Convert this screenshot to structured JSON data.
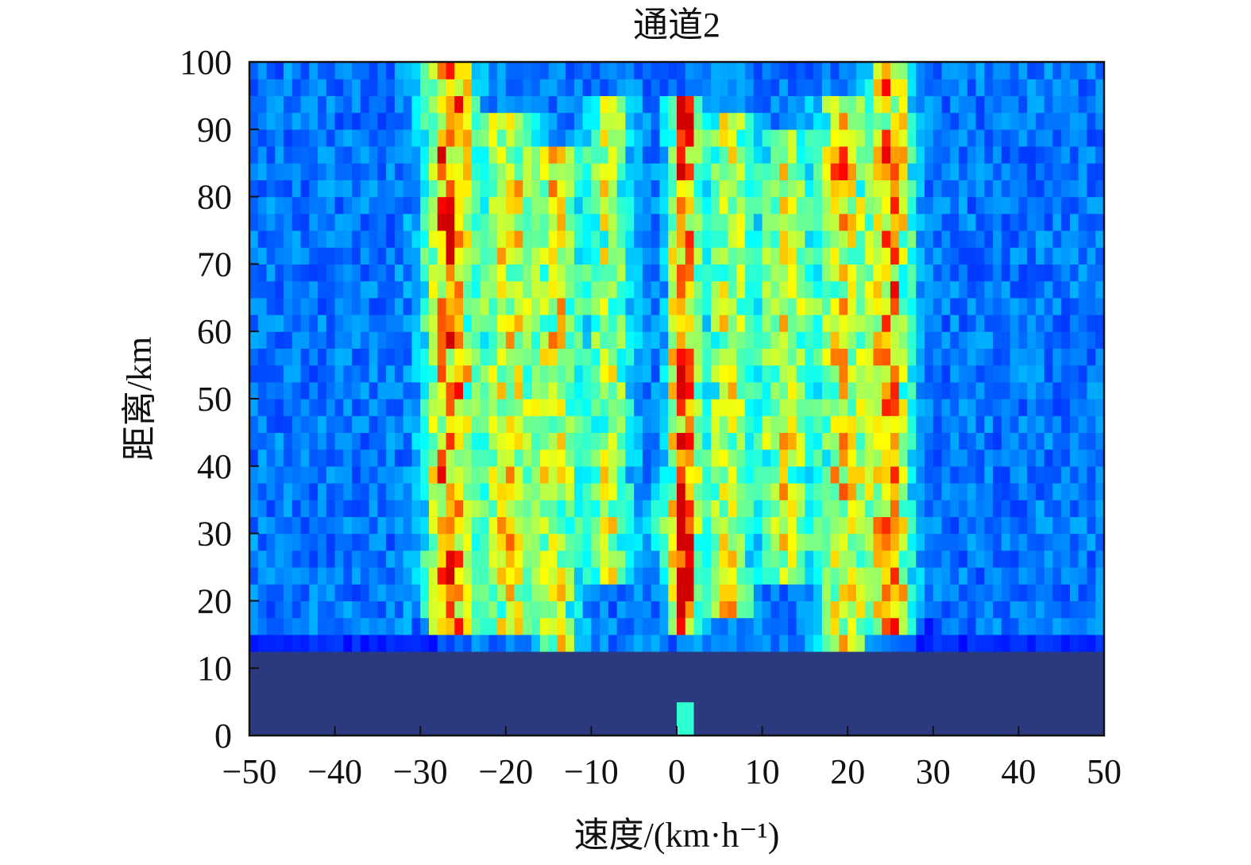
{
  "chart_data": {
    "type": "heatmap",
    "title": "通道2",
    "xlabel": "速度/(km·h⁻¹)",
    "ylabel": "距离/km",
    "xlim": [
      -50,
      50
    ],
    "ylim": [
      0,
      100
    ],
    "xticks": [
      -50,
      -40,
      -30,
      -20,
      -10,
      0,
      10,
      20,
      30,
      40,
      50
    ],
    "yticks": [
      0,
      10,
      20,
      30,
      40,
      50,
      60,
      70,
      80,
      90,
      100
    ],
    "xtick_labels": [
      "−50",
      "−40",
      "−30",
      "−20",
      "−10",
      "0",
      "10",
      "20",
      "30",
      "40",
      "50"
    ],
    "ytick_labels": [
      "0",
      "10",
      "20",
      "30",
      "40",
      "50",
      "60",
      "70",
      "80",
      "90",
      "100"
    ],
    "grid": false,
    "colormap": "jet",
    "colors": {
      "floor": "#2b3a7e",
      "low": "#2f4ea6",
      "mid": "#35b8d8",
      "high": "#e6e62a",
      "peak": "#e8281c"
    },
    "cells": {
      "x_bin_width": 1,
      "y_bin_height": 2.5,
      "floor_top_range": 14,
      "noise_seed": 1234
    },
    "bands": [
      {
        "center": -26.5,
        "width": 2.8,
        "from": 14,
        "to": 100,
        "intensity": 0.6
      },
      {
        "center": -19.5,
        "width": 3.0,
        "from": 16,
        "to": 92,
        "intensity": 0.45
      },
      {
        "center": -14.0,
        "width": 2.4,
        "from": 12,
        "to": 88,
        "intensity": 0.42
      },
      {
        "center": -8.0,
        "width": 2.6,
        "from": 22,
        "to": 96,
        "intensity": 0.38
      },
      {
        "center": 0.8,
        "width": 1.6,
        "from": 16,
        "to": 96,
        "intensity": 0.7
      },
      {
        "center": 6.0,
        "width": 2.6,
        "from": 18,
        "to": 92,
        "intensity": 0.4
      },
      {
        "center": 12.5,
        "width": 2.8,
        "from": 22,
        "to": 90,
        "intensity": 0.42
      },
      {
        "center": 19.5,
        "width": 2.8,
        "from": 12,
        "to": 94,
        "intensity": 0.47
      },
      {
        "center": 25.0,
        "width": 2.4,
        "from": 14,
        "to": 100,
        "intensity": 0.55
      }
    ],
    "hotspots": [
      {
        "x": 0.8,
        "y": 22.5,
        "sx": 1.0,
        "sy": 3.0,
        "v": 0.55
      },
      {
        "x": 0.8,
        "y": 31.0,
        "sx": 1.0,
        "sy": 3.0,
        "v": 0.38
      },
      {
        "x": 0.8,
        "y": 55.0,
        "sx": 1.2,
        "sy": 3.0,
        "v": 0.28
      },
      {
        "x": -26.5,
        "y": 75.0,
        "sx": 1.2,
        "sy": 4.0,
        "v": 0.25
      },
      {
        "x": 6.0,
        "y": 21.0,
        "sx": 1.2,
        "sy": 3.0,
        "v": 0.25
      },
      {
        "x": -2.0,
        "y": 31.0,
        "sx": 1.6,
        "sy": 4.0,
        "v": 0.2
      },
      {
        "x": 19.0,
        "y": 85.0,
        "sx": 1.2,
        "sy": 3.0,
        "v": 0.2
      },
      {
        "x": 15.0,
        "y": 65.0,
        "sx": 1.2,
        "sy": 3.0,
        "v": 0.2
      }
    ]
  }
}
